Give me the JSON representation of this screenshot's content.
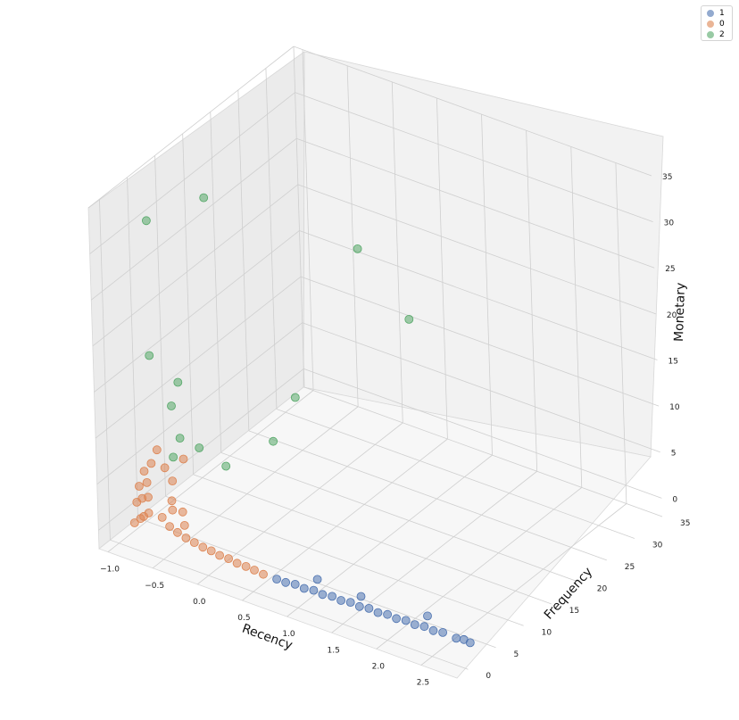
{
  "chart_data": {
    "type": "scatter",
    "projection": "3d",
    "xlabel": "Recency",
    "ylabel": "Frequency",
    "zlabel": "Monetary",
    "xticks": [
      "−1.0",
      "−0.5",
      "0.0",
      "0.5",
      "1.0",
      "1.5",
      "2.0",
      "2.5"
    ],
    "yticks": [
      "0",
      "5",
      "10",
      "15",
      "20",
      "25",
      "30",
      "35"
    ],
    "zticks": [
      "0",
      "5",
      "10",
      "15",
      "20",
      "25",
      "30",
      "35"
    ],
    "xlim": [
      -1.1,
      2.9
    ],
    "ylim": [
      -2,
      35
    ],
    "zlim": [
      -2,
      35
    ],
    "grid": true,
    "legend_placement": "top-right",
    "legend": [
      "1",
      "0",
      "2"
    ],
    "colors": {
      "1": "#4c72b0",
      "0": "#dd8452",
      "2": "#55a868"
    },
    "series": [
      {
        "name": "1",
        "points": [
          [
            0.75,
            0.3,
            0.1
          ],
          [
            0.85,
            0.3,
            0.1
          ],
          [
            0.95,
            0.4,
            0.2
          ],
          [
            1.05,
            0.4,
            0.1
          ],
          [
            1.15,
            0.5,
            0.2
          ],
          [
            1.25,
            0.5,
            0.1
          ],
          [
            1.35,
            0.6,
            0.2
          ],
          [
            1.45,
            0.6,
            0.1
          ],
          [
            1.55,
            0.7,
            0.2
          ],
          [
            1.65,
            0.7,
            0.1
          ],
          [
            1.75,
            0.8,
            0.2
          ],
          [
            1.85,
            0.8,
            0.1
          ],
          [
            1.95,
            0.9,
            0.2
          ],
          [
            2.05,
            0.9,
            0.1
          ],
          [
            2.15,
            1.0,
            0.2
          ],
          [
            2.25,
            1.0,
            0.1
          ],
          [
            2.35,
            1.1,
            0.2
          ],
          [
            2.45,
            1.1,
            0.1
          ],
          [
            2.55,
            1.2,
            0.2
          ],
          [
            2.7,
            1.2,
            0.1
          ],
          [
            2.78,
            1.3,
            0.2
          ],
          [
            2.85,
            1.3,
            0.1
          ],
          [
            1.1,
            2.0,
            0.5
          ],
          [
            1.6,
            1.8,
            0.5
          ],
          [
            2.3,
            2.5,
            0.5
          ]
        ]
      },
      {
        "name": "0",
        "points": [
          [
            -0.85,
            0.5,
            0.5
          ],
          [
            -0.8,
            0.8,
            1.0
          ],
          [
            -0.75,
            0.6,
            1.5
          ],
          [
            -0.7,
            0.7,
            2.0
          ],
          [
            -0.85,
            1.0,
            2.5
          ],
          [
            -0.8,
            1.2,
            3.0
          ],
          [
            -0.72,
            1.0,
            3.5
          ],
          [
            -0.85,
            1.5,
            4.0
          ],
          [
            -0.78,
            1.8,
            4.5
          ],
          [
            -0.82,
            2.0,
            5.5
          ],
          [
            -0.75,
            2.2,
            6.5
          ],
          [
            -0.6,
            1.5,
            1.5
          ],
          [
            -0.5,
            1.2,
            1.0
          ],
          [
            -0.4,
            1.0,
            0.8
          ],
          [
            -0.3,
            0.9,
            0.6
          ],
          [
            -0.2,
            0.8,
            0.5
          ],
          [
            -0.1,
            0.7,
            0.4
          ],
          [
            0.0,
            0.6,
            0.4
          ],
          [
            0.1,
            0.5,
            0.3
          ],
          [
            0.2,
            0.5,
            0.3
          ],
          [
            0.3,
            0.4,
            0.2
          ],
          [
            0.4,
            0.4,
            0.2
          ],
          [
            0.5,
            0.3,
            0.2
          ],
          [
            0.6,
            0.3,
            0.1
          ],
          [
            -0.55,
            2.5,
            3.0
          ],
          [
            -0.45,
            2.8,
            2.0
          ],
          [
            -0.6,
            3.5,
            4.5
          ],
          [
            -0.5,
            4.0,
            7.0
          ],
          [
            -0.65,
            3.0,
            6.0
          ],
          [
            -0.7,
            2.5,
            8.0
          ],
          [
            -0.5,
            1.8,
            2.5
          ],
          [
            -0.35,
            1.5,
            1.5
          ]
        ]
      },
      {
        "name": "2",
        "points": [
          [
            -0.9,
            5.0,
            31.0
          ],
          [
            -0.5,
            9.0,
            33.0
          ],
          [
            0.9,
            14.0,
            30.0
          ],
          [
            -0.85,
            4.0,
            17.0
          ],
          [
            -0.6,
            5.0,
            14.5
          ],
          [
            -0.65,
            4.5,
            12.0
          ],
          [
            0.4,
            10.0,
            14.0
          ],
          [
            1.2,
            18.0,
            21.5
          ],
          [
            -0.5,
            3.5,
            9.5
          ],
          [
            -0.35,
            4.5,
            8.5
          ],
          [
            -0.55,
            3.0,
            7.5
          ],
          [
            -0.15,
            6.0,
            6.5
          ],
          [
            0.2,
            9.0,
            9.0
          ]
        ]
      }
    ]
  }
}
